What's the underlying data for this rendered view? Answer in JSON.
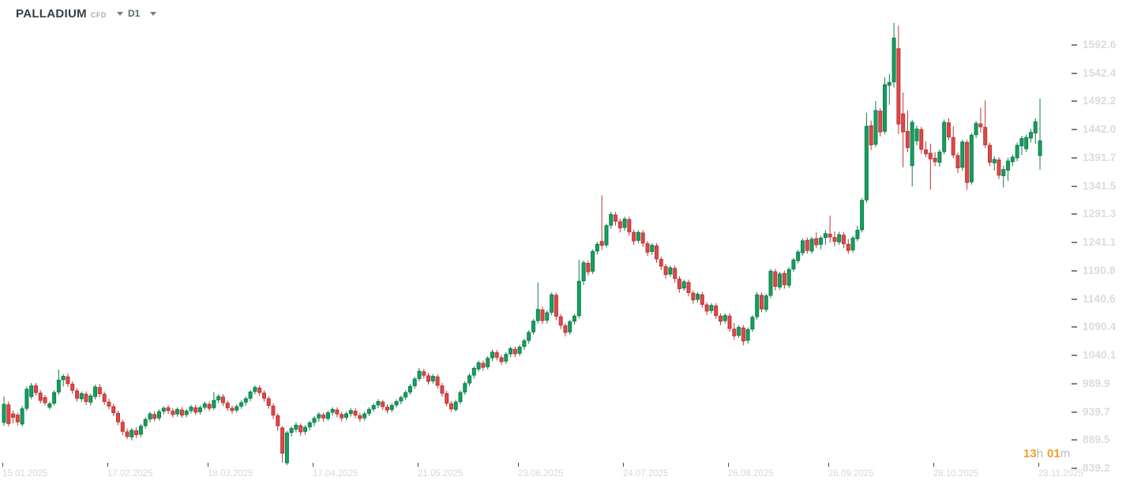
{
  "header": {
    "symbol": "PALLADIUM",
    "instrument_type": "CFD",
    "timeframe": "D1"
  },
  "countdown": {
    "hours": "13",
    "hours_unit": "h",
    "minutes": "01",
    "minutes_unit": "m"
  },
  "colors": {
    "bull": "#15a05f",
    "bull_border": "#0e7e4a",
    "bear": "#dc4a4a",
    "bear_border": "#bd3434",
    "axis_text": "#d9dcde",
    "axis_dash": "#79828a",
    "tick_mark": "#42484d",
    "countdown_accent": "#f59d27",
    "countdown_muted": "#b6bcc1",
    "title_text": "#333f48",
    "muted_text": "#a3abb1"
  },
  "chart_data": {
    "type": "candlestick",
    "title": "PALLADIUM CFD D1",
    "legend_position": "none",
    "grid": false,
    "y_axis_side": "right",
    "price_axis_labels": [
      "1592.6",
      "1542.4",
      "1492.2",
      "1442.0",
      "1391.7",
      "1341.5",
      "1291.3",
      "1241.1",
      "1190.8",
      "1140.6",
      "1090.4",
      "1040.1",
      "989.9",
      "939.7",
      "889.5",
      "839.2"
    ],
    "y_range": [
      839.2,
      1645.0
    ],
    "x_ticks": [
      {
        "index": 0,
        "label": "15.01.2025"
      },
      {
        "index": 23,
        "label": "17.02.2025"
      },
      {
        "index": 45,
        "label": "18.03.2025"
      },
      {
        "index": 68,
        "label": "17.04.2025"
      },
      {
        "index": 91,
        "label": "21.05.2025"
      },
      {
        "index": 113,
        "label": "23.06.2025"
      },
      {
        "index": 136,
        "label": "24.07.2025"
      },
      {
        "index": 159,
        "label": "26.08.2025"
      },
      {
        "index": 181,
        "label": "26.09.2025"
      },
      {
        "index": 204,
        "label": "28.10.2025"
      },
      {
        "index": 227,
        "label": "28.11.2025"
      }
    ],
    "candles_format": [
      "open",
      "high",
      "low",
      "close"
    ],
    "candles": [
      [
        921,
        967,
        915,
        953
      ],
      [
        952,
        958,
        914,
        919
      ],
      [
        936,
        942,
        919,
        930
      ],
      [
        934,
        938,
        915,
        922
      ],
      [
        918,
        950,
        914,
        945
      ],
      [
        946,
        985,
        941,
        980
      ],
      [
        967,
        991,
        962,
        986
      ],
      [
        986,
        991,
        969,
        974
      ],
      [
        973,
        978,
        955,
        960
      ],
      [
        965,
        970,
        951,
        956
      ],
      [
        948,
        958,
        944,
        954
      ],
      [
        955,
        978,
        951,
        974
      ],
      [
        975,
        1015,
        970,
        996
      ],
      [
        997,
        1007,
        985,
        1003
      ],
      [
        1002,
        1008,
        984,
        990
      ],
      [
        989,
        994,
        972,
        978
      ],
      [
        977,
        982,
        958,
        964
      ],
      [
        963,
        976,
        957,
        972
      ],
      [
        971,
        976,
        952,
        958
      ],
      [
        957,
        972,
        951,
        968
      ],
      [
        967,
        988,
        962,
        984
      ],
      [
        983,
        989,
        966,
        972
      ],
      [
        971,
        976,
        952,
        958
      ],
      [
        957,
        963,
        944,
        950
      ],
      [
        949,
        954,
        932,
        938
      ],
      [
        937,
        942,
        916,
        922
      ],
      [
        921,
        926,
        898,
        905
      ],
      [
        904,
        910,
        891,
        896
      ],
      [
        895,
        911,
        889,
        907
      ],
      [
        906,
        912,
        893,
        899
      ],
      [
        900,
        918,
        895,
        914
      ],
      [
        915,
        930,
        910,
        926
      ],
      [
        927,
        940,
        921,
        936
      ],
      [
        935,
        941,
        923,
        928
      ],
      [
        929,
        944,
        924,
        940
      ],
      [
        941,
        950,
        935,
        946
      ],
      [
        947,
        952,
        936,
        942
      ],
      [
        941,
        946,
        930,
        935
      ],
      [
        936,
        948,
        931,
        944
      ],
      [
        943,
        948,
        929,
        934
      ],
      [
        935,
        945,
        930,
        941
      ],
      [
        942,
        952,
        937,
        948
      ],
      [
        947,
        952,
        934,
        939
      ],
      [
        940,
        951,
        935,
        947
      ],
      [
        948,
        958,
        943,
        954
      ],
      [
        953,
        958,
        941,
        946
      ],
      [
        947,
        975,
        943,
        960
      ],
      [
        961,
        971,
        955,
        967
      ],
      [
        966,
        971,
        950,
        956
      ],
      [
        955,
        960,
        941,
        947
      ],
      [
        946,
        951,
        936,
        942
      ],
      [
        943,
        953,
        938,
        949
      ],
      [
        950,
        960,
        945,
        956
      ],
      [
        957,
        967,
        951,
        963
      ],
      [
        964,
        979,
        959,
        975
      ],
      [
        976,
        987,
        971,
        983
      ],
      [
        982,
        987,
        968,
        974
      ],
      [
        973,
        978,
        958,
        964
      ],
      [
        963,
        968,
        945,
        951
      ],
      [
        950,
        955,
        927,
        934
      ],
      [
        933,
        937,
        906,
        915
      ],
      [
        911,
        914,
        849,
        866
      ],
      [
        849,
        906,
        845,
        902
      ],
      [
        903,
        914,
        896,
        910
      ],
      [
        909,
        921,
        903,
        916
      ],
      [
        915,
        919,
        897,
        904
      ],
      [
        905,
        916,
        899,
        912
      ],
      [
        913,
        924,
        907,
        920
      ],
      [
        921,
        932,
        914,
        928
      ],
      [
        929,
        939,
        922,
        935
      ],
      [
        934,
        938,
        922,
        929
      ],
      [
        928,
        942,
        924,
        938
      ],
      [
        939,
        948,
        933,
        944
      ],
      [
        943,
        948,
        930,
        936
      ],
      [
        935,
        940,
        923,
        929
      ],
      [
        930,
        940,
        925,
        936
      ],
      [
        937,
        946,
        931,
        942
      ],
      [
        941,
        946,
        928,
        934
      ],
      [
        933,
        938,
        922,
        928
      ],
      [
        929,
        940,
        924,
        936
      ],
      [
        937,
        948,
        932,
        944
      ],
      [
        945,
        955,
        940,
        951
      ],
      [
        952,
        962,
        946,
        958
      ],
      [
        957,
        961,
        943,
        949
      ],
      [
        948,
        953,
        937,
        943
      ],
      [
        944,
        955,
        939,
        951
      ],
      [
        952,
        962,
        947,
        958
      ],
      [
        959,
        969,
        953,
        965
      ],
      [
        966,
        978,
        961,
        974
      ],
      [
        975,
        989,
        970,
        985
      ],
      [
        986,
        1002,
        981,
        998
      ],
      [
        999,
        1018,
        994,
        1012
      ],
      [
        1011,
        1016,
        999,
        1005
      ],
      [
        1004,
        1009,
        988,
        994
      ],
      [
        995,
        1007,
        990,
        1003
      ],
      [
        1002,
        1007,
        981,
        987
      ],
      [
        986,
        991,
        967,
        973
      ],
      [
        972,
        977,
        950,
        955
      ],
      [
        954,
        959,
        940,
        945
      ],
      [
        944,
        961,
        940,
        957
      ],
      [
        958,
        978,
        953,
        974
      ],
      [
        975,
        994,
        970,
        990
      ],
      [
        991,
        1008,
        986,
        1004
      ],
      [
        1005,
        1021,
        999,
        1017
      ],
      [
        1016,
        1031,
        1011,
        1027
      ],
      [
        1026,
        1031,
        1013,
        1019
      ],
      [
        1020,
        1039,
        1015,
        1035
      ],
      [
        1036,
        1050,
        1030,
        1046
      ],
      [
        1045,
        1050,
        1031,
        1037
      ],
      [
        1036,
        1041,
        1023,
        1029
      ],
      [
        1030,
        1046,
        1025,
        1042
      ],
      [
        1043,
        1056,
        1037,
        1052
      ],
      [
        1051,
        1056,
        1037,
        1043
      ],
      [
        1044,
        1059,
        1039,
        1055
      ],
      [
        1056,
        1070,
        1050,
        1066
      ],
      [
        1067,
        1085,
        1061,
        1081
      ],
      [
        1082,
        1105,
        1077,
        1101
      ],
      [
        1102,
        1170,
        1097,
        1122
      ],
      [
        1121,
        1127,
        1096,
        1102
      ],
      [
        1103,
        1120,
        1097,
        1116
      ],
      [
        1117,
        1152,
        1112,
        1148
      ],
      [
        1147,
        1152,
        1103,
        1110
      ],
      [
        1109,
        1114,
        1087,
        1094
      ],
      [
        1093,
        1098,
        1074,
        1081
      ],
      [
        1082,
        1104,
        1077,
        1100
      ],
      [
        1101,
        1114,
        1095,
        1110
      ],
      [
        1111,
        1210,
        1106,
        1172
      ],
      [
        1173,
        1209,
        1165,
        1205
      ],
      [
        1204,
        1209,
        1182,
        1189
      ],
      [
        1190,
        1229,
        1185,
        1225
      ],
      [
        1226,
        1242,
        1220,
        1238
      ],
      [
        1243,
        1325,
        1228,
        1236
      ],
      [
        1237,
        1275,
        1232,
        1271
      ],
      [
        1272,
        1296,
        1266,
        1291
      ],
      [
        1290,
        1295,
        1271,
        1279
      ],
      [
        1278,
        1283,
        1259,
        1267
      ],
      [
        1268,
        1287,
        1262,
        1283
      ],
      [
        1282,
        1287,
        1253,
        1260
      ],
      [
        1259,
        1264,
        1237,
        1244
      ],
      [
        1245,
        1263,
        1240,
        1259
      ],
      [
        1258,
        1263,
        1233,
        1240
      ],
      [
        1239,
        1244,
        1217,
        1224
      ],
      [
        1225,
        1240,
        1219,
        1236
      ],
      [
        1235,
        1240,
        1205,
        1212
      ],
      [
        1211,
        1216,
        1192,
        1199
      ],
      [
        1198,
        1203,
        1177,
        1184
      ],
      [
        1185,
        1200,
        1180,
        1196
      ],
      [
        1195,
        1200,
        1170,
        1177
      ],
      [
        1176,
        1181,
        1152,
        1159
      ],
      [
        1160,
        1175,
        1155,
        1171
      ],
      [
        1170,
        1175,
        1145,
        1152
      ],
      [
        1151,
        1156,
        1132,
        1139
      ],
      [
        1140,
        1153,
        1135,
        1149
      ],
      [
        1148,
        1153,
        1125,
        1131
      ],
      [
        1130,
        1135,
        1112,
        1119
      ],
      [
        1120,
        1133,
        1115,
        1129
      ],
      [
        1128,
        1133,
        1105,
        1111
      ],
      [
        1110,
        1115,
        1094,
        1101
      ],
      [
        1102,
        1115,
        1097,
        1111
      ],
      [
        1110,
        1115,
        1082,
        1088
      ],
      [
        1087,
        1098,
        1068,
        1075
      ],
      [
        1076,
        1094,
        1071,
        1090
      ],
      [
        1089,
        1094,
        1058,
        1066
      ],
      [
        1067,
        1090,
        1061,
        1086
      ],
      [
        1087,
        1112,
        1082,
        1108
      ],
      [
        1109,
        1153,
        1104,
        1148
      ],
      [
        1147,
        1152,
        1117,
        1123
      ],
      [
        1122,
        1150,
        1117,
        1146
      ],
      [
        1147,
        1194,
        1142,
        1190
      ],
      [
        1189,
        1194,
        1156,
        1163
      ],
      [
        1162,
        1189,
        1157,
        1185
      ],
      [
        1186,
        1191,
        1159,
        1166
      ],
      [
        1165,
        1197,
        1160,
        1193
      ],
      [
        1194,
        1214,
        1189,
        1210
      ],
      [
        1209,
        1228,
        1204,
        1224
      ],
      [
        1223,
        1248,
        1218,
        1244
      ],
      [
        1245,
        1250,
        1221,
        1227
      ],
      [
        1226,
        1251,
        1221,
        1247
      ],
      [
        1248,
        1259,
        1231,
        1237
      ],
      [
        1238,
        1253,
        1229,
        1249
      ],
      [
        1250,
        1263,
        1237,
        1257
      ],
      [
        1256,
        1289,
        1241,
        1251
      ],
      [
        1250,
        1261,
        1234,
        1243
      ],
      [
        1242,
        1260,
        1237,
        1255
      ],
      [
        1254,
        1259,
        1231,
        1239
      ],
      [
        1238,
        1247,
        1221,
        1227
      ],
      [
        1228,
        1253,
        1223,
        1249
      ],
      [
        1248,
        1271,
        1243,
        1263
      ],
      [
        1264,
        1320,
        1259,
        1316
      ],
      [
        1317,
        1472,
        1312,
        1448
      ],
      [
        1449,
        1458,
        1406,
        1415
      ],
      [
        1416,
        1493,
        1411,
        1476
      ],
      [
        1475,
        1480,
        1430,
        1438
      ],
      [
        1439,
        1535,
        1434,
        1522
      ],
      [
        1521,
        1541,
        1486,
        1526
      ],
      [
        1527,
        1632,
        1517,
        1605
      ],
      [
        1586,
        1627,
        1434,
        1452
      ],
      [
        1470,
        1508,
        1375,
        1438
      ],
      [
        1439,
        1476,
        1402,
        1410
      ],
      [
        1378,
        1459,
        1341,
        1455
      ],
      [
        1422,
        1449,
        1414,
        1443
      ],
      [
        1442,
        1447,
        1399,
        1407
      ],
      [
        1406,
        1421,
        1393,
        1399
      ],
      [
        1400,
        1417,
        1335,
        1390
      ],
      [
        1391,
        1402,
        1377,
        1385
      ],
      [
        1384,
        1407,
        1376,
        1402
      ],
      [
        1403,
        1460,
        1398,
        1455
      ],
      [
        1454,
        1462,
        1423,
        1429
      ],
      [
        1428,
        1448,
        1391,
        1397
      ],
      [
        1396,
        1401,
        1365,
        1374
      ],
      [
        1375,
        1424,
        1369,
        1420
      ],
      [
        1419,
        1424,
        1335,
        1348
      ],
      [
        1349,
        1436,
        1344,
        1432
      ],
      [
        1433,
        1457,
        1427,
        1453
      ],
      [
        1452,
        1481,
        1437,
        1447
      ],
      [
        1446,
        1494,
        1409,
        1415
      ],
      [
        1414,
        1419,
        1377,
        1384
      ],
      [
        1383,
        1395,
        1369,
        1389
      ],
      [
        1388,
        1393,
        1354,
        1361
      ],
      [
        1360,
        1378,
        1339,
        1371
      ],
      [
        1370,
        1392,
        1351,
        1386
      ],
      [
        1385,
        1398,
        1377,
        1393
      ],
      [
        1392,
        1419,
        1386,
        1414
      ],
      [
        1413,
        1431,
        1397,
        1426
      ],
      [
        1408,
        1433,
        1402,
        1428
      ],
      [
        1427,
        1443,
        1419,
        1437
      ],
      [
        1436,
        1462,
        1417,
        1456
      ],
      [
        1396,
        1497,
        1371,
        1422
      ]
    ]
  }
}
